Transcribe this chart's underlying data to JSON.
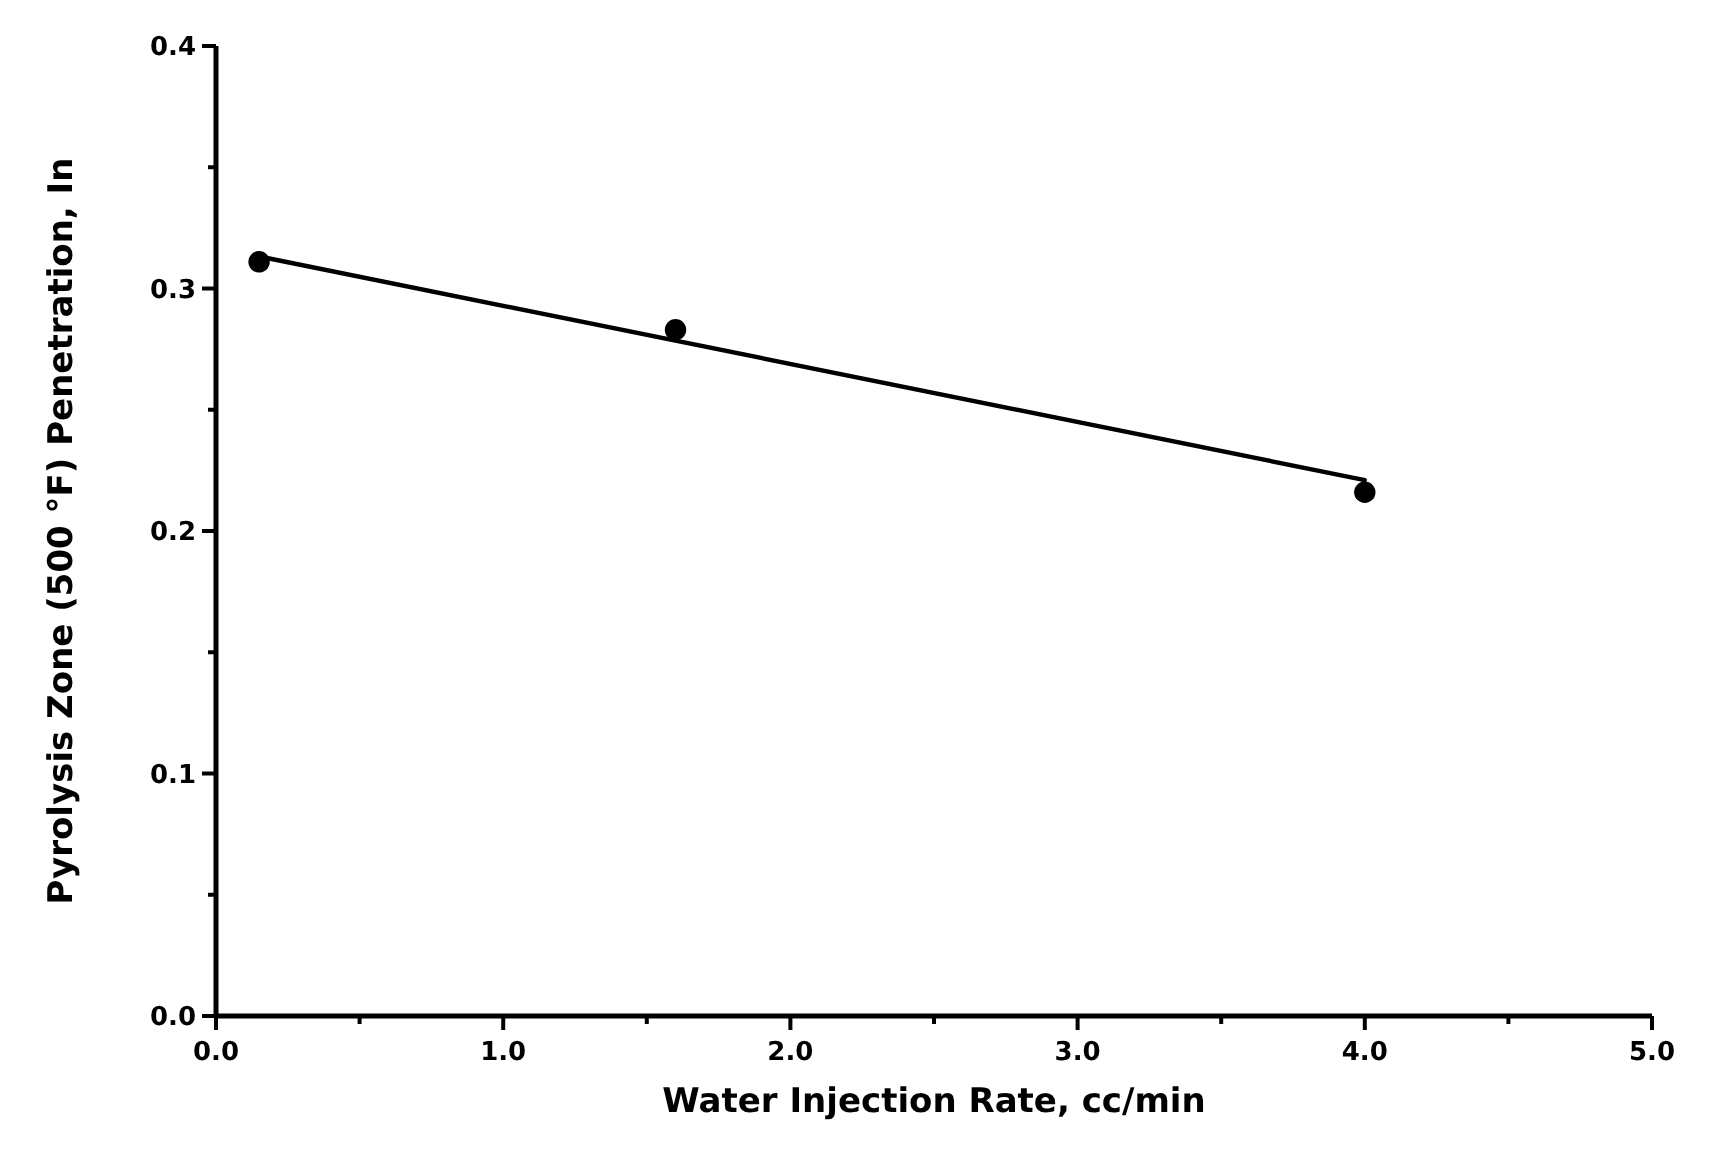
{
  "chart_data": {
    "type": "scatter",
    "xlabel": "Water Injection Rate, cc/min",
    "ylabel": "Pyrolysis Zone (500 °F) Penetration, In",
    "xlim": [
      0,
      5
    ],
    "ylim": [
      0,
      0.4
    ],
    "xticks": [
      {
        "value": 0,
        "label": "0.0"
      },
      {
        "value": 0.5,
        "label": null
      },
      {
        "value": 1,
        "label": "1.0"
      },
      {
        "value": 1.5,
        "label": null
      },
      {
        "value": 2,
        "label": "2.0"
      },
      {
        "value": 2.5,
        "label": null
      },
      {
        "value": 3,
        "label": "3.0"
      },
      {
        "value": 3.5,
        "label": null
      },
      {
        "value": 4,
        "label": "4.0"
      },
      {
        "value": 4.5,
        "label": null
      },
      {
        "value": 5,
        "label": "5.0"
      }
    ],
    "yticks": [
      {
        "value": 0,
        "label": "0.0"
      },
      {
        "value": 0.05,
        "label": null
      },
      {
        "value": 0.1,
        "label": "0.1"
      },
      {
        "value": 0.15,
        "label": null
      },
      {
        "value": 0.2,
        "label": "0.2"
      },
      {
        "value": 0.25,
        "label": null
      },
      {
        "value": 0.3,
        "label": "0.3"
      },
      {
        "value": 0.35,
        "label": null
      },
      {
        "value": 0.4,
        "label": "0.4"
      }
    ],
    "grid": false,
    "series": [
      {
        "marker": "circle",
        "color": "#000000",
        "x": [
          0.15,
          1.6,
          4.0
        ],
        "values": [
          0.311,
          0.283,
          0.216
        ]
      },
      {
        "type": "line",
        "color": "#000000",
        "x": [
          0.16,
          4.0
        ],
        "values": [
          0.313,
          0.221
        ]
      }
    ]
  }
}
